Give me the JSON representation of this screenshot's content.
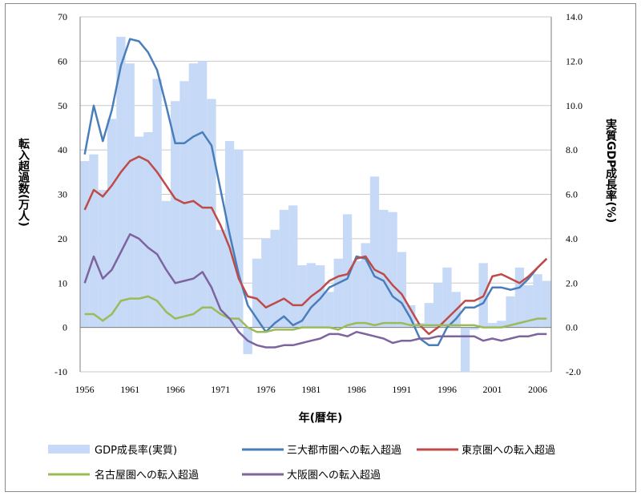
{
  "chart_data": {
    "type": "bar+line",
    "xlabel": "年(暦年)",
    "y_left_label": "転入超過数(万人)",
    "y_right_label": "実質GDP成長率(%)",
    "y_left_lim": [
      -10,
      70
    ],
    "y_left_ticks": [
      "-10",
      "0",
      "10",
      "20",
      "30",
      "40",
      "50",
      "60",
      "70"
    ],
    "y_right_lim": [
      -2.0,
      14.0
    ],
    "y_right_ticks": [
      "-2.0",
      "0.0",
      "2.0",
      "4.0",
      "6.0",
      "8.0",
      "10.0",
      "12.0",
      "14.0"
    ],
    "x_range": [
      1956,
      2007
    ],
    "x_ticks": [
      "1956",
      "1961",
      "1966",
      "1971",
      "1976",
      "1981",
      "1986",
      "1991",
      "1996",
      "2001",
      "2006"
    ],
    "gridlines": "horizontal",
    "legend_position": "bottom",
    "gdp": {
      "name": "GDP成長率(実質)",
      "color": "#c6d9f7",
      "x": [
        1956,
        1957,
        1958,
        1959,
        1960,
        1961,
        1962,
        1963,
        1964,
        1965,
        1966,
        1967,
        1968,
        1969,
        1970,
        1971,
        1972,
        1973,
        1974,
        1975,
        1976,
        1977,
        1978,
        1979,
        1980,
        1981,
        1982,
        1983,
        1984,
        1985,
        1986,
        1987,
        1988,
        1989,
        1990,
        1991,
        1992,
        1993,
        1994,
        1995,
        1996,
        1997,
        1998,
        1999,
        2000,
        2001,
        2002,
        2003,
        2004,
        2005,
        2006,
        2007
      ],
      "values": [
        7.5,
        7.8,
        6.2,
        9.4,
        13.1,
        11.9,
        8.6,
        8.8,
        11.2,
        5.7,
        10.2,
        11.1,
        11.9,
        12.0,
        10.3,
        4.4,
        8.4,
        8.0,
        -1.2,
        3.1,
        4.0,
        4.4,
        5.3,
        5.5,
        2.8,
        2.9,
        2.8,
        1.6,
        3.1,
        5.1,
        3.0,
        3.8,
        6.8,
        5.3,
        5.2,
        3.4,
        1.0,
        0.2,
        1.1,
        2.0,
        2.7,
        1.6,
        -2.0,
        -0.1,
        2.9,
        0.2,
        0.3,
        1.4,
        2.7,
        1.9,
        2.4,
        2.1
      ]
    },
    "series": [
      {
        "name": "三大都市圏への転入超過",
        "color": "#4a7ebb",
        "x": [
          1956,
          1957,
          1958,
          1959,
          1960,
          1961,
          1962,
          1963,
          1964,
          1965,
          1966,
          1967,
          1968,
          1969,
          1970,
          1971,
          1972,
          1973,
          1974,
          1975,
          1976,
          1977,
          1978,
          1979,
          1980,
          1981,
          1982,
          1983,
          1984,
          1985,
          1986,
          1987,
          1988,
          1989,
          1990,
          1991,
          1992,
          1993,
          1994,
          1995,
          1996,
          1997,
          1998,
          1999,
          2000,
          2001,
          2002,
          2003,
          2004,
          2005,
          2006,
          2007
        ],
        "values": [
          39,
          50,
          42,
          49,
          59,
          65,
          64.5,
          62,
          58,
          50,
          41.5,
          41.5,
          43,
          44,
          41,
          31,
          21,
          12,
          5,
          2,
          -1,
          1,
          2.5,
          0.5,
          1.5,
          4.5,
          6.5,
          9,
          10,
          11,
          16,
          15.5,
          11.5,
          10.5,
          7,
          5.5,
          2,
          -2.5,
          -4,
          -4,
          0,
          2,
          4.5,
          4.5,
          5.5,
          9,
          9,
          8.5,
          9,
          11,
          13.5,
          15.5
        ]
      },
      {
        "name": "東京圏への転入超過",
        "color": "#be4b48",
        "x": [
          1956,
          1957,
          1958,
          1959,
          1960,
          1961,
          1962,
          1963,
          1964,
          1965,
          1966,
          1967,
          1968,
          1969,
          1970,
          1971,
          1972,
          1973,
          1974,
          1975,
          1976,
          1977,
          1978,
          1979,
          1980,
          1981,
          1982,
          1983,
          1984,
          1985,
          1986,
          1987,
          1988,
          1989,
          1990,
          1991,
          1992,
          1993,
          1994,
          1995,
          1996,
          1997,
          1998,
          1999,
          2000,
          2001,
          2002,
          2003,
          2004,
          2005,
          2006,
          2007
        ],
        "values": [
          26.5,
          31,
          29.5,
          32,
          35,
          37.5,
          38.5,
          37.5,
          35,
          32,
          29,
          28,
          28.5,
          27,
          27,
          23,
          18,
          11,
          7,
          6.5,
          4.5,
          5.5,
          6.5,
          5,
          5,
          7,
          8.5,
          10.5,
          11.5,
          12,
          15.5,
          16,
          13,
          12,
          9.5,
          7.5,
          4,
          0.5,
          -1.5,
          0,
          2,
          4,
          6,
          6,
          7,
          11.5,
          12,
          11,
          10,
          11.5,
          13.5,
          15.5
        ]
      },
      {
        "name": "名古屋圏への転入超過",
        "color": "#9bbb59",
        "x": [
          1956,
          1957,
          1958,
          1959,
          1960,
          1961,
          1962,
          1963,
          1964,
          1965,
          1966,
          1967,
          1968,
          1969,
          1970,
          1971,
          1972,
          1973,
          1974,
          1975,
          1976,
          1977,
          1978,
          1979,
          1980,
          1981,
          1982,
          1983,
          1984,
          1985,
          1986,
          1987,
          1988,
          1989,
          1990,
          1991,
          1992,
          1993,
          1994,
          1995,
          1996,
          1997,
          1998,
          1999,
          2000,
          2001,
          2002,
          2003,
          2004,
          2005,
          2006,
          2007
        ],
        "values": [
          3,
          3,
          1.5,
          3,
          6,
          6.5,
          6.5,
          7,
          6,
          3.5,
          2,
          2.5,
          3,
          4.5,
          4.5,
          3,
          2,
          2,
          0,
          -1,
          -1,
          -0.5,
          -0.5,
          -0.5,
          0,
          0,
          0,
          0,
          -0.5,
          0.5,
          1,
          1,
          0.5,
          1,
          1,
          1,
          0.5,
          0.5,
          0.5,
          0.5,
          0.5,
          0.5,
          0.5,
          0.5,
          0,
          0,
          0,
          0.5,
          1,
          1.5,
          2,
          2
        ]
      },
      {
        "name": "大阪圏への転入超過",
        "color": "#7e649e",
        "x": [
          1956,
          1957,
          1958,
          1959,
          1960,
          1961,
          1962,
          1963,
          1964,
          1965,
          1966,
          1967,
          1968,
          1969,
          1970,
          1971,
          1972,
          1973,
          1974,
          1975,
          1976,
          1977,
          1978,
          1979,
          1980,
          1981,
          1982,
          1983,
          1984,
          1985,
          1986,
          1987,
          1988,
          1989,
          1990,
          1991,
          1992,
          1993,
          1994,
          1995,
          1996,
          1997,
          1998,
          1999,
          2000,
          2001,
          2002,
          2003,
          2004,
          2005,
          2006,
          2007
        ],
        "values": [
          10,
          16,
          11,
          13,
          17,
          21,
          20,
          18,
          16.5,
          13,
          10,
          10.5,
          11,
          12.5,
          9,
          4,
          2,
          -1,
          -3,
          -4,
          -4.5,
          -4.5,
          -4,
          -4,
          -3.5,
          -3,
          -2.5,
          -1.5,
          -1.5,
          -2,
          -1,
          -1.5,
          -2,
          -2.5,
          -3.5,
          -3,
          -3,
          -2.5,
          -2.5,
          -2,
          -2,
          -2,
          -2,
          -2,
          -3,
          -2.5,
          -3,
          -2.5,
          -2,
          -2,
          -1.5,
          -1.5
        ]
      }
    ]
  }
}
